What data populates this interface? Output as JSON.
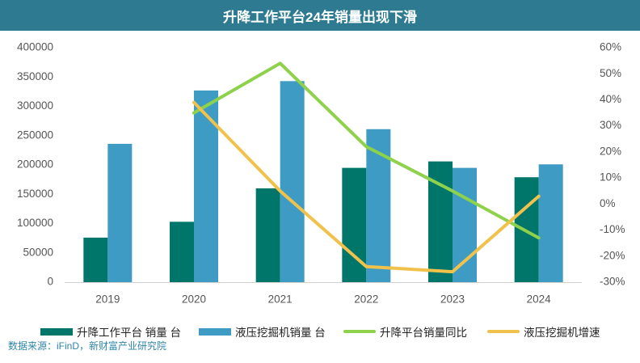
{
  "title": "升降工作平台24年销量出现下滑",
  "source": "数据来源：iFinD，新财富产业研究院",
  "colors": {
    "title_bg": "#2e7b91",
    "bar1": "#00756a",
    "bar2": "#3e9cc4",
    "line1": "#8ed14a",
    "line2": "#f0c24b"
  },
  "legend": [
    {
      "label": "升降工作平台 销量 台",
      "kind": "bar",
      "color": "#00756a"
    },
    {
      "label": "液压挖掘机销量 台",
      "kind": "bar",
      "color": "#3e9cc4"
    },
    {
      "label": "升降平台销量同比",
      "kind": "line",
      "color": "#8ed14a"
    },
    {
      "label": "液压挖掘机增速",
      "kind": "line",
      "color": "#f0c24b"
    }
  ],
  "chart_data": {
    "type": "bar",
    "categories": [
      "2019",
      "2020",
      "2021",
      "2022",
      "2023",
      "2024"
    ],
    "series": [
      {
        "name": "升降工作平台 销量 台",
        "type": "bar",
        "axis": "left",
        "values": [
          76000,
          103000,
          160000,
          195000,
          206000,
          179000
        ]
      },
      {
        "name": "液压挖掘机销量 台",
        "type": "bar",
        "axis": "left",
        "values": [
          236000,
          327000,
          343000,
          261000,
          195000,
          201000
        ]
      },
      {
        "name": "升降平台销量同比",
        "type": "line",
        "axis": "right",
        "values": [
          null,
          0.35,
          0.54,
          0.22,
          0.05,
          -0.13
        ]
      },
      {
        "name": "液压挖掘机增速",
        "type": "line",
        "axis": "right",
        "values": [
          null,
          0.39,
          0.05,
          -0.24,
          -0.26,
          0.03
        ]
      }
    ],
    "y_left": {
      "min": 0,
      "max": 400000,
      "ticks": [
        "0",
        "50000",
        "100000",
        "150000",
        "200000",
        "250000",
        "300000",
        "350000",
        "400000"
      ]
    },
    "y_right": {
      "min": -0.3,
      "max": 0.6,
      "ticks": [
        "-30%",
        "-20%",
        "-10%",
        "0%",
        "10%",
        "20%",
        "30%",
        "40%",
        "50%",
        "60%"
      ]
    },
    "grid": false,
    "legend_position": "bottom"
  }
}
